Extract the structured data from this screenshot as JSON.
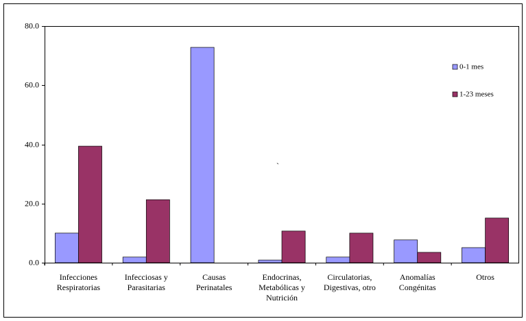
{
  "chart_data": {
    "type": "bar",
    "categories": [
      "Infecciones\nRespiratorias",
      "Infecciosas y\nParasitarias",
      "Causas\nPerinatales",
      "Endocrinas,\nMetabólicas y\nNutrición",
      "Circulatorias,\nDigestivas, otro",
      "Anomalías\nCongénitas",
      "Otros"
    ],
    "series": [
      {
        "name": "0-1 mes",
        "color": "#9999ff",
        "values": [
          10.0,
          1.9,
          72.8,
          0.9,
          1.9,
          7.7,
          5.1
        ]
      },
      {
        "name": "1-23 meses",
        "color": "#993366",
        "values": [
          39.4,
          21.3,
          0,
          10.7,
          10.0,
          3.5,
          15.1
        ]
      }
    ],
    "ylim": [
      0,
      80
    ],
    "yticks": [
      {
        "value": 0,
        "label": "0.0"
      },
      {
        "value": 20,
        "label": "20.0"
      },
      {
        "value": 40,
        "label": "40.0"
      },
      {
        "value": 60,
        "label": "60.0"
      },
      {
        "value": 80,
        "label": "80.0"
      }
    ],
    "annotation": "`",
    "legend": "upper right"
  }
}
